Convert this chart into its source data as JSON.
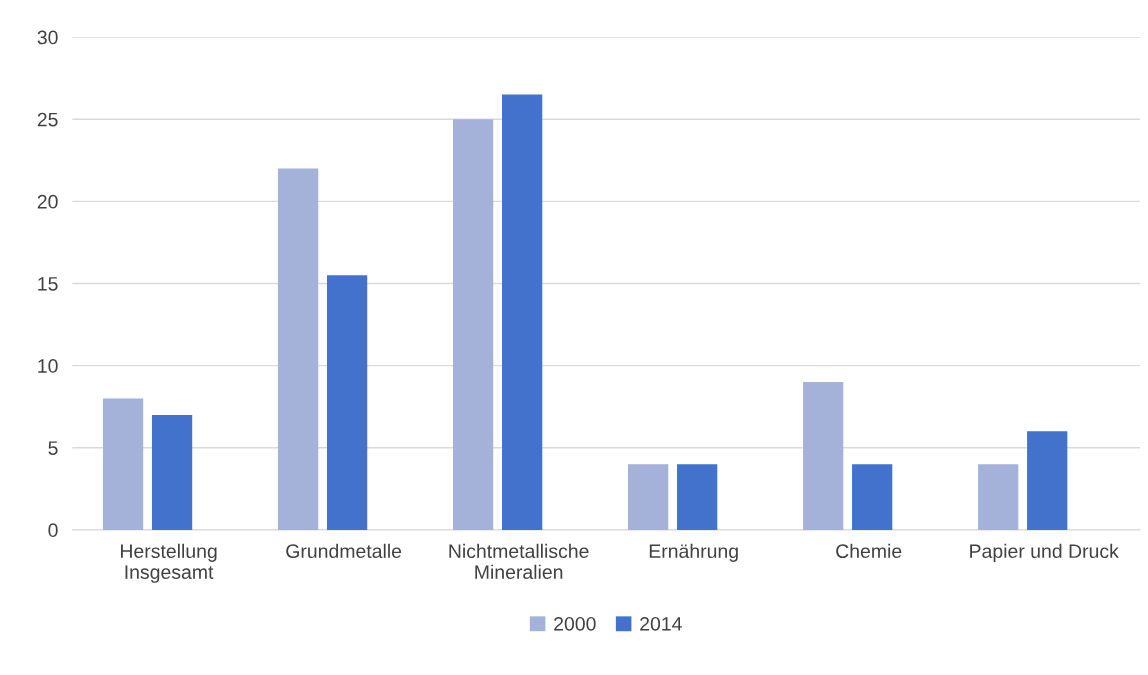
{
  "chart_data": {
    "type": "bar",
    "categories": [
      "Herstellung\nInsgesamt",
      "Grundmetalle",
      "Nichtmetallische\nMineralien",
      "Ernährung",
      "Chemie",
      "Papier und Druck"
    ],
    "series": [
      {
        "name": "2000",
        "color": "#a4b2da",
        "values": [
          8,
          22,
          25,
          4,
          9,
          4
        ]
      },
      {
        "name": "2014",
        "color": "#4272cc",
        "values": [
          7,
          15.5,
          26.5,
          4,
          4,
          6
        ]
      }
    ],
    "ylim": [
      0,
      30
    ],
    "yticks": [
      0,
      5,
      10,
      15,
      20,
      25,
      30
    ],
    "grid": "y",
    "legend": "bottom"
  }
}
